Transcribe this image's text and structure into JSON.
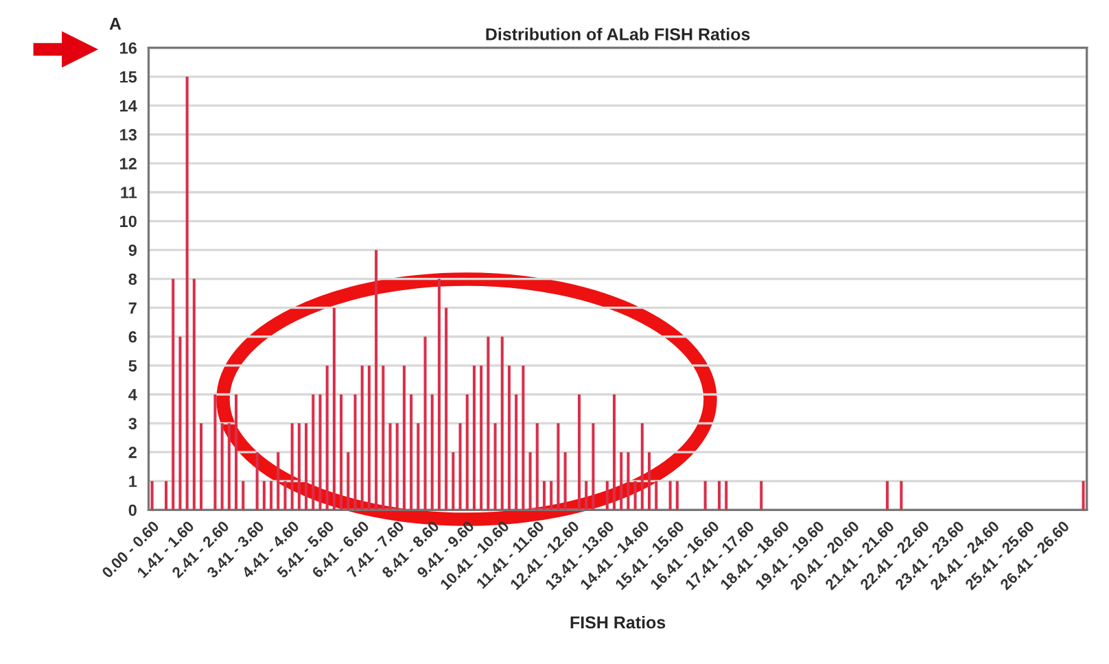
{
  "chart_data": {
    "type": "bar",
    "title": "Distribution of ALab FISH Ratios",
    "xlabel": "FISH Ratios",
    "annotations": [
      "A"
    ],
    "categories": [
      "0.00 - 0.60",
      null,
      null,
      null,
      null,
      "1.41 - 1.60",
      null,
      null,
      null,
      null,
      "2.41 - 2.60",
      null,
      null,
      null,
      null,
      "3.41 - 3.60",
      null,
      null,
      null,
      null,
      "4.41 - 4.60",
      null,
      null,
      null,
      null,
      "5.41 - 5.60",
      null,
      null,
      null,
      null,
      "6.41 - 6.60",
      null,
      null,
      null,
      null,
      "7.41 - 7.60",
      null,
      null,
      null,
      null,
      "8.41 - 8.60",
      null,
      null,
      null,
      null,
      "9.41 - 9.60",
      null,
      null,
      null,
      null,
      "10.41 - 10.60",
      null,
      null,
      null,
      null,
      "11.41 - 11.60",
      null,
      null,
      null,
      null,
      "12.41 - 12.60",
      null,
      null,
      null,
      null,
      "13.41 - 13.60",
      null,
      null,
      null,
      null,
      "14.41 - 14.60",
      null,
      null,
      null,
      null,
      "15.41 - 15.60",
      null,
      null,
      null,
      null,
      "16.41 - 16.60",
      null,
      null,
      null,
      null,
      "17.41 - 17.60",
      null,
      null,
      null,
      null,
      "18.41 - 18.60",
      null,
      null,
      null,
      null,
      "19.41 - 19.60",
      null,
      null,
      null,
      null,
      "20.41 - 20.60",
      null,
      null,
      null,
      null,
      "21.41 - 21.60",
      null,
      null,
      null,
      null,
      "22.41 - 22.60",
      null,
      null,
      null,
      null,
      "23.41 - 23.60",
      null,
      null,
      null,
      null,
      "24.41 - 24.60",
      null,
      null,
      null,
      null,
      "25.41 - 25.60",
      null,
      null,
      null,
      null,
      "26.41 - 26.60",
      null,
      null,
      null
    ],
    "values": [
      1,
      0,
      1,
      8,
      6,
      15,
      8,
      3,
      0,
      4,
      3,
      3,
      4,
      1,
      0,
      2,
      1,
      1,
      2,
      1,
      3,
      3,
      3,
      4,
      4,
      5,
      7,
      4,
      2,
      4,
      5,
      5,
      9,
      5,
      3,
      3,
      5,
      4,
      3,
      6,
      4,
      8,
      7,
      2,
      3,
      4,
      5,
      5,
      6,
      3,
      6,
      5,
      4,
      5,
      2,
      3,
      1,
      1,
      3,
      2,
      0,
      4,
      1,
      3,
      0,
      1,
      4,
      2,
      2,
      1,
      3,
      2,
      1,
      0,
      1,
      1,
      0,
      0,
      0,
      1,
      0,
      1,
      1,
      0,
      0,
      0,
      0,
      1,
      0,
      0,
      0,
      0,
      0,
      0,
      0,
      0,
      0,
      0,
      0,
      0,
      0,
      0,
      0,
      0,
      0,
      1,
      0,
      1,
      0,
      0,
      0,
      0,
      0,
      0,
      0,
      0,
      0,
      0,
      0,
      0,
      0,
      0,
      0,
      0,
      0,
      0,
      0,
      0,
      0,
      0,
      0,
      0,
      0,
      1
    ],
    "color": "#d9304a",
    "ylim": [
      0,
      16
    ],
    "yticks": [
      0,
      1,
      2,
      3,
      4,
      5,
      6,
      7,
      8,
      9,
      10,
      11,
      12,
      13,
      14,
      15,
      16
    ],
    "grid": "y"
  }
}
